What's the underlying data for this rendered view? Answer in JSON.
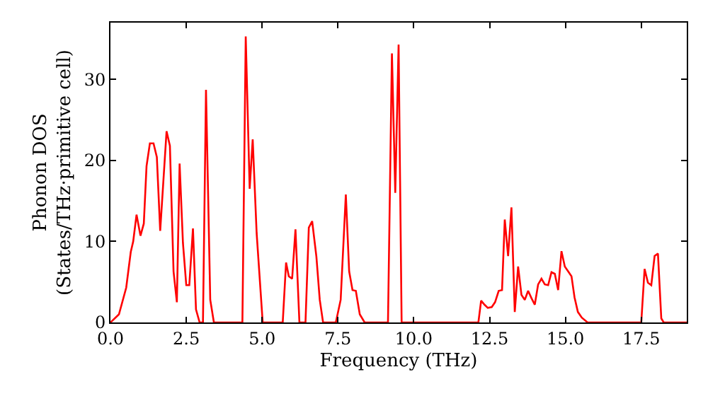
{
  "chart_data": {
    "type": "line",
    "xlabel": "Frequency (THz)",
    "ylabel": "Phonon DOS\n(States/THz·primitive cell)",
    "xlim": [
      0,
      19
    ],
    "ylim": [
      0,
      37
    ],
    "xticks": [
      {
        "value": 0,
        "label": "0.0"
      },
      {
        "value": 2.5,
        "label": "2.5"
      },
      {
        "value": 5,
        "label": "5.0"
      },
      {
        "value": 7.5,
        "label": "7.5"
      },
      {
        "value": 10,
        "label": "10.0"
      },
      {
        "value": 12.5,
        "label": "12.5"
      },
      {
        "value": 15,
        "label": "15.0"
      },
      {
        "value": 17.5,
        "label": "17.5"
      }
    ],
    "yticks": [
      0,
      10,
      20,
      30
    ],
    "marker": "none",
    "line_style": "solid",
    "series": [
      {
        "color": "#ff0000",
        "x": [
          0,
          0.28,
          0.52,
          0.67,
          0.75,
          0.86,
          0.99,
          1.1,
          1.19,
          1.3,
          1.42,
          1.53,
          1.64,
          1.85,
          1.96,
          2.08,
          2.19,
          2.28,
          2.39,
          2.5,
          2.6,
          2.72,
          2.82,
          2.94,
          3.05,
          3.15,
          3.29,
          3.41,
          4.35,
          4.46,
          4.59,
          4.69,
          4.82,
          5.02,
          5.68,
          5.79,
          5.88,
          5.99,
          6.1,
          6.23,
          6.43,
          6.54,
          6.65,
          6.79,
          6.9,
          7.01,
          7.43,
          7.59,
          7.76,
          7.87,
          7.98,
          8.09,
          8.22,
          8.38,
          9.15,
          9.28,
          9.39,
          9.5,
          9.6,
          12.13,
          12.22,
          12.33,
          12.44,
          12.57,
          12.68,
          12.8,
          12.91,
          13.0,
          13.11,
          13.22,
          13.33,
          13.44,
          13.55,
          13.66,
          13.77,
          13.88,
          13.99,
          14.1,
          14.21,
          14.32,
          14.43,
          14.54,
          14.65,
          14.76,
          14.87,
          14.98,
          15.09,
          15.2,
          15.3,
          15.41,
          15.54,
          15.73,
          17.5,
          17.61,
          17.72,
          17.83,
          17.94,
          18.05,
          18.16,
          18.24,
          19
        ],
        "values": [
          0,
          1,
          4.3,
          8.7,
          10,
          13.3,
          10.7,
          12.2,
          19.3,
          22.1,
          22.1,
          20.4,
          11.3,
          23.6,
          21.8,
          6.3,
          2.5,
          19.6,
          9.8,
          4.6,
          4.6,
          11.6,
          1.6,
          0,
          0,
          28.7,
          2.8,
          0,
          0,
          35.3,
          16.5,
          22.6,
          11,
          0,
          0,
          7.4,
          5.7,
          5.4,
          11.5,
          0,
          0,
          11.7,
          12.5,
          8.1,
          2.8,
          0,
          0,
          2.8,
          15.8,
          6.3,
          4,
          3.9,
          1,
          0,
          0,
          33.2,
          16,
          34.3,
          0,
          0,
          2.7,
          2.2,
          1.8,
          1.9,
          2.5,
          3.9,
          4,
          12.7,
          8.2,
          14.2,
          1.3,
          6.9,
          3.4,
          2.8,
          3.9,
          3,
          2.2,
          4.7,
          5.4,
          4.7,
          4.6,
          6.2,
          6,
          4,
          8.8,
          6.9,
          6.3,
          5.7,
          3.1,
          1.3,
          0.6,
          0,
          0,
          6.6,
          4.9,
          4.6,
          8.2,
          8.5,
          0.5,
          0,
          0
        ]
      }
    ]
  }
}
